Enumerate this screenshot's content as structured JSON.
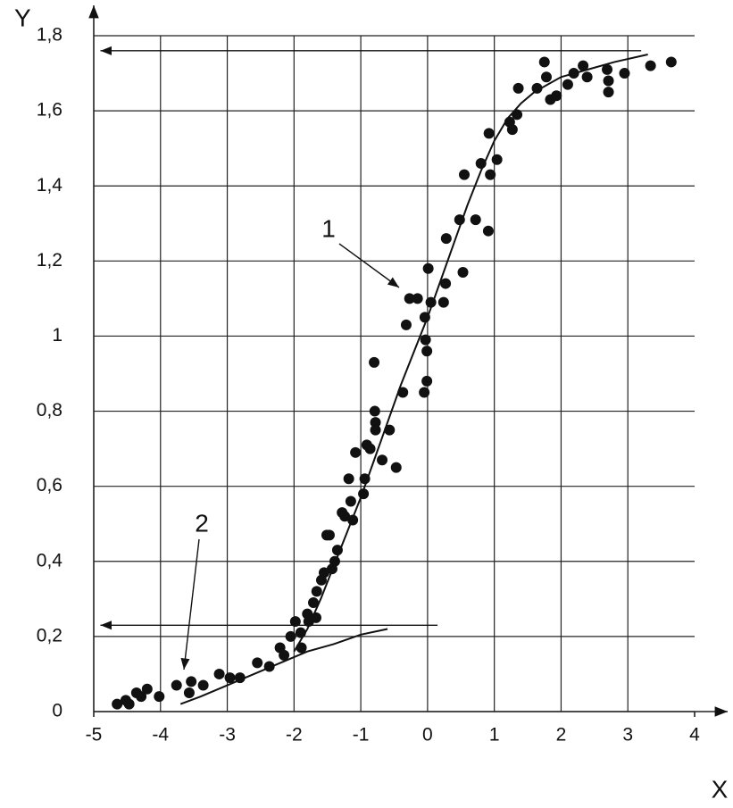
{
  "chart_data": {
    "type": "scatter",
    "xlabel": "X",
    "ylabel": "Y",
    "xlim": [
      -5,
      4
    ],
    "xticks": [
      -5,
      -4,
      -3,
      -2,
      -1,
      0,
      1,
      2,
      3,
      4
    ],
    "ylim": [
      0,
      1.8
    ],
    "yticks": [
      0,
      {
        "value": 0.2,
        "label": "0,2"
      },
      {
        "value": 0.4,
        "label": "0,4"
      },
      {
        "value": 0.6,
        "label": "0,6"
      },
      {
        "value": 0.8,
        "label": "0,8"
      },
      1,
      {
        "value": 1.2,
        "label": "1,2"
      },
      {
        "value": 1.4,
        "label": "1,4"
      },
      {
        "value": 1.6,
        "label": "1,6"
      },
      {
        "value": 1.8,
        "label": "1,8"
      }
    ],
    "grid": true,
    "color": "#111",
    "x": [
      -4.65,
      -4.52,
      -4.47,
      -4.36,
      -4.29,
      -4.2,
      -4.02,
      -3.76,
      -3.54,
      -3.57,
      -3.36,
      -3.12,
      -2.96,
      -2.81,
      -2.55,
      -2.37,
      -2.21,
      -2.15,
      -2.05,
      -1.98,
      -1.9,
      -1.89,
      -1.8,
      -1.78,
      -1.71,
      -1.67,
      -1.66,
      -1.59,
      -1.55,
      -1.51,
      -1.47,
      -1.43,
      -1.39,
      -1.35,
      -1.28,
      -1.24,
      -1.18,
      -1.15,
      -1.12,
      -1.08,
      -0.96,
      -0.94,
      -0.91,
      -0.86,
      -0.8,
      -0.79,
      -0.78,
      -0.78,
      -0.68,
      -0.57,
      -0.47,
      -0.37,
      -0.32,
      -0.27,
      -0.15,
      -0.05,
      -0.04,
      -0.03,
      -0.01,
      -0.01,
      0.01,
      0.05,
      0.24,
      0.27,
      0.28,
      0.48,
      0.53,
      0.55,
      0.72,
      0.8,
      0.91,
      0.92,
      0.94,
      1.04,
      1.23,
      1.27,
      1.34,
      1.36,
      1.64,
      1.75,
      1.78,
      1.84,
      1.93,
      2.1,
      2.19,
      2.33,
      2.39,
      2.69,
      2.71,
      2.71,
      2.95,
      3.34,
      3.65
    ],
    "values": [
      0.02,
      0.03,
      0.02,
      0.05,
      0.04,
      0.06,
      0.04,
      0.07,
      0.08,
      0.05,
      0.07,
      0.1,
      0.09,
      0.09,
      0.13,
      0.12,
      0.17,
      0.15,
      0.2,
      0.24,
      0.21,
      0.17,
      0.26,
      0.24,
      0.29,
      0.25,
      0.32,
      0.35,
      0.37,
      0.47,
      0.47,
      0.38,
      0.4,
      0.43,
      0.53,
      0.52,
      0.62,
      0.56,
      0.51,
      0.69,
      0.58,
      0.62,
      0.71,
      0.7,
      0.93,
      0.8,
      0.77,
      0.75,
      0.67,
      0.75,
      0.65,
      0.85,
      1.03,
      1.1,
      1.1,
      0.85,
      1.05,
      0.99,
      0.88,
      0.96,
      1.18,
      1.09,
      1.09,
      1.14,
      1.26,
      1.31,
      1.17,
      1.43,
      1.31,
      1.46,
      1.28,
      1.54,
      1.43,
      1.47,
      1.57,
      1.55,
      1.59,
      1.66,
      1.66,
      1.73,
      1.69,
      1.63,
      1.64,
      1.67,
      1.7,
      1.72,
      1.69,
      1.71,
      1.68,
      1.65,
      1.7,
      1.72,
      1.73
    ],
    "curves": [
      {
        "x": [
          -2.0,
          -1.8,
          -1.6,
          -1.4,
          -1.2,
          -1.0,
          -0.8,
          -0.6,
          -0.4,
          -0.2,
          0,
          0.2,
          0.4,
          0.6,
          0.8,
          1.0,
          1.2,
          1.4,
          1.6,
          1.8,
          2.0,
          2.4,
          2.8,
          3.3
        ],
        "values": [
          0.16,
          0.22,
          0.3,
          0.39,
          0.48,
          0.57,
          0.67,
          0.77,
          0.87,
          0.96,
          1.05,
          1.15,
          1.25,
          1.35,
          1.44,
          1.52,
          1.58,
          1.62,
          1.65,
          1.67,
          1.69,
          1.71,
          1.73,
          1.75
        ]
      },
      {
        "x": [
          -3.7,
          -3.4,
          -3.0,
          -2.6,
          -2.2,
          -1.8,
          -1.4,
          -1.0,
          -0.6
        ],
        "values": [
          0.02,
          0.04,
          0.07,
          0.1,
          0.13,
          0.16,
          0.18,
          0.205,
          0.22
        ]
      }
    ],
    "arrows": [
      {
        "x": [
          3.2,
          -4.9
        ],
        "values": [
          1.76,
          1.76
        ]
      },
      {
        "x": [
          0.15,
          -4.9
        ],
        "values": [
          0.23,
          0.23
        ]
      }
    ],
    "annotations": [
      "1",
      "2"
    ]
  }
}
